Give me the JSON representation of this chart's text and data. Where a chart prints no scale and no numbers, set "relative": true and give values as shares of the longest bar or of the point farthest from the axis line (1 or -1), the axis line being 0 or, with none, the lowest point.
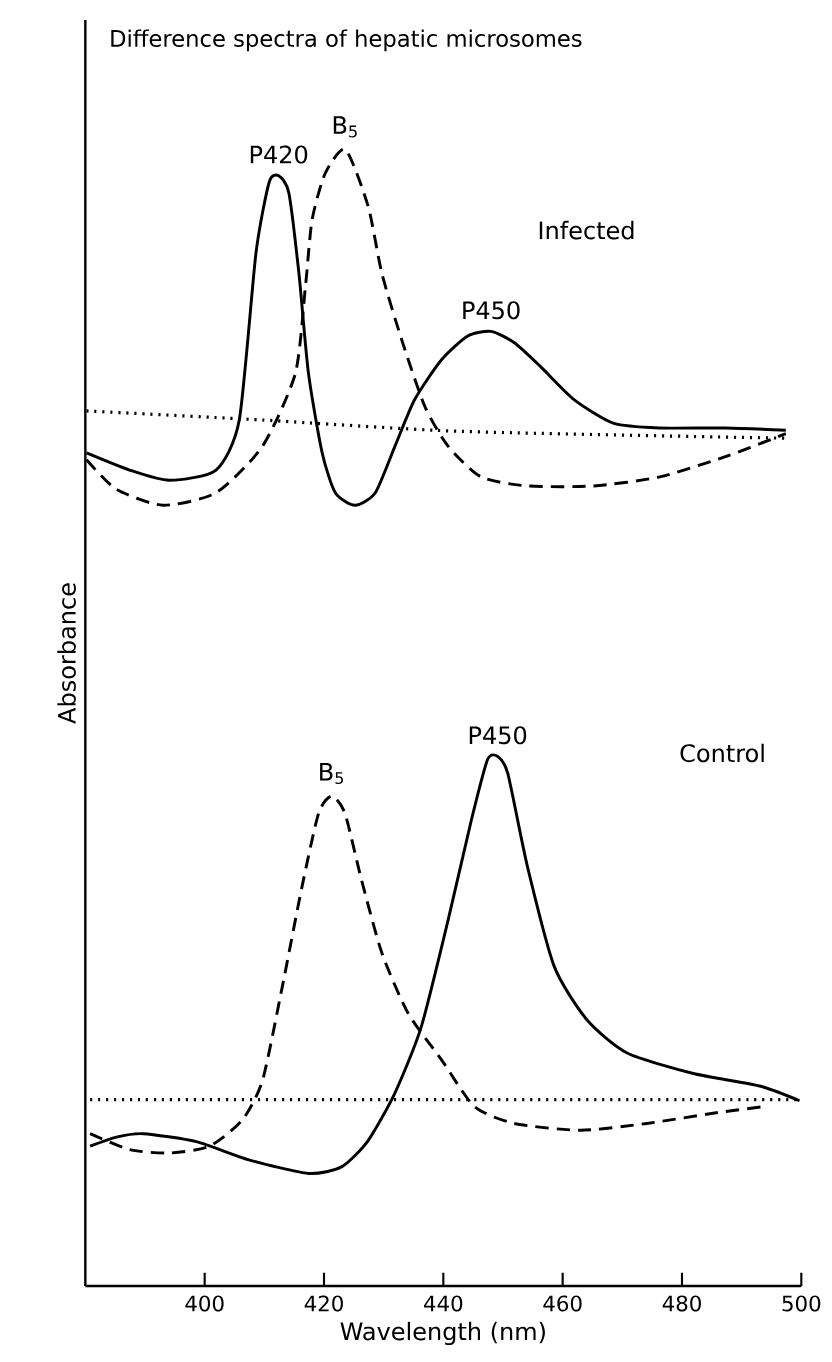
{
  "chart_data": {
    "type": "line",
    "title": "Difference spectra of hepatic microsomes",
    "xlabel": "Wavelength (nm)",
    "ylabel": "Absorbance",
    "relative": true,
    "xlim": [
      380,
      500
    ],
    "xticks": [
      400,
      420,
      440,
      460,
      480,
      500
    ],
    "marker": "none",
    "series": [
      {
        "color": "#000000",
        "line_style": "solid",
        "x": [
          380.2,
          387.4,
          394.1,
          401.9,
          405.8,
          408.6,
          410.8,
          412.4,
          414.1,
          415.8,
          417.4,
          419.7,
          421.9,
          425.2,
          428.6,
          431.9,
          435.2,
          439.7,
          444.1,
          448,
          451.9,
          456.3,
          461.9,
          468.6,
          476.3,
          487.4,
          497.4
        ],
        "values": [
          0.733,
          0.718,
          0.709,
          0.718,
          0.762,
          0.909,
          0.971,
          0.977,
          0.962,
          0.891,
          0.803,
          0.733,
          0.698,
          0.687,
          0.698,
          0.739,
          0.78,
          0.815,
          0.836,
          0.84,
          0.83,
          0.809,
          0.78,
          0.759,
          0.755,
          0.755,
          0.753
        ]
      },
      {
        "color": "#000000",
        "line_style": "dashed",
        "x": [
          380.2,
          385.2,
          393,
          401.9,
          409.7,
          415.2,
          416.9,
          418,
          420.2,
          423.6,
          427.4,
          429.7,
          433,
          436.9,
          440.8,
          446.3,
          454.1,
          465.2,
          476.3,
          487.4,
          497.4
        ],
        "values": [
          0.727,
          0.701,
          0.687,
          0.698,
          0.739,
          0.803,
          0.88,
          0.938,
          0.979,
          1.0,
          0.95,
          0.891,
          0.833,
          0.774,
          0.739,
          0.712,
          0.704,
          0.704,
          0.712,
          0.73,
          0.75
        ]
      },
      {
        "color": "#000000",
        "line_style": "dotted",
        "x": [
          380.2,
          409.7,
          443,
          497.4
        ],
        "values": [
          0.77,
          0.762,
          0.752,
          0.746
        ]
      },
      {
        "color": "#000000",
        "line_style": "solid",
        "x": [
          380.8,
          385.2,
          389.7,
          398.6,
          407.4,
          417.4,
          423,
          427.4,
          431.9,
          436.3,
          440.8,
          444.7,
          447.4,
          449.1,
          450.8,
          454.1,
          458.6,
          464.1,
          470.8,
          481.9,
          493,
          499.7
        ],
        "values": [
          0.123,
          0.131,
          0.134,
          0.127,
          0.111,
          0.099,
          0.105,
          0.128,
          0.17,
          0.228,
          0.322,
          0.41,
          0.463,
          0.466,
          0.451,
          0.369,
          0.281,
          0.234,
          0.205,
          0.187,
          0.176,
          0.163
        ]
      },
      {
        "color": "#000000",
        "line_style": "dashed",
        "x": [
          380.8,
          387.4,
          394.1,
          400.8,
          406.3,
          409.7,
          413,
          416.3,
          419.1,
          421.3,
          423.5,
          426.3,
          429.7,
          434.1,
          439.7,
          445.2,
          451.9,
          463,
          474.1,
          485.2,
          494
        ],
        "values": [
          0.134,
          0.12,
          0.117,
          0.123,
          0.146,
          0.181,
          0.263,
          0.351,
          0.416,
          0.431,
          0.416,
          0.357,
          0.293,
          0.24,
          0.199,
          0.158,
          0.143,
          0.137,
          0.143,
          0.152,
          0.158
        ]
      },
      {
        "color": "#000000",
        "line_style": "dotted",
        "x": [
          380.8,
          499.7
        ],
        "values": [
          0.164,
          0.164
        ]
      }
    ],
    "annotations": [
      {
        "text": "P420",
        "x": 412.4,
        "y": 0.977
      },
      {
        "text": "B$_{5}$",
        "x": 423.6,
        "y": 1.0
      },
      {
        "text": "P450",
        "x": 448,
        "y": 0.84
      },
      "Infected",
      {
        "text": "B$_{5}$",
        "x": 421.3,
        "y": 0.431
      },
      {
        "text": "P450",
        "x": 449.1,
        "y": 0.466
      },
      "Control"
    ]
  }
}
